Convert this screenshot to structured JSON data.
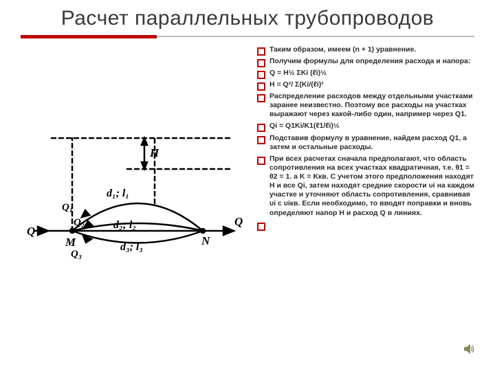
{
  "title": "Расчет параллельных трубопроводов",
  "accent_color": "#c00000",
  "bullet_border": "#c00000",
  "text_color": "#2b2b2b",
  "bullets": [
    {
      "text": "Таким образом, имеем  (n + 1) уравнение.",
      "cls": ""
    },
    {
      "text": "Получим формулы для определения расхода и напора:",
      "cls": ""
    },
    {
      "text": "Q = H½ ΣKi (ℓi)½",
      "cls": "formula-line"
    },
    {
      "text": "H = Q²/ Σ(Ki/(ℓi)²",
      "cls": "formula-line"
    },
    {
      "text": "Распределение расходов между отдельными участками заранее неизвестно. Поэтому все расходы на участках выражают через какой-либо один, например через Q1.",
      "cls": ""
    },
    {
      "text": "Qi = Q1Ki/K1(ℓ1/ℓi)½",
      "cls": ""
    },
    {
      "text": "Подставив формулу  в уравнение, найдем расход  Q1, а затем и остальные расходы.",
      "cls": ""
    },
    {
      "text": "При всех расчетах сначала предполагают, что область сопротивления на всех участках квадратичная, т.е.  θ1 = θ2 = 1. а  K = Kкв. С учетом этого предположения находят  H  и все Qi, затем находят средние скорости υi  на каждом участке и уточняют область сопротивления, сравнивая  υi  с  υiкв. Если необходимо, то вводят поправки и вновь определяют напор  H  и расход  Q в линиях.",
      "cls": ""
    },
    {
      "text": "",
      "cls": ""
    }
  ],
  "diagram": {
    "stroke": "#000000",
    "stroke_width": 2.5,
    "font_family": "Times New Roman, serif",
    "font_style": "italic",
    "label_Q_left": "Q",
    "label_Q_right": "Q",
    "label_M": "M",
    "label_N": "N",
    "label_H": "H",
    "label_d1": "d₁; l₁",
    "label_d2": "d₂; l₂",
    "label_d3": "d₃; l₃",
    "label_Q1": "Q₁",
    "label_Q2": "Q₂",
    "label_Q3": "Q₃"
  }
}
